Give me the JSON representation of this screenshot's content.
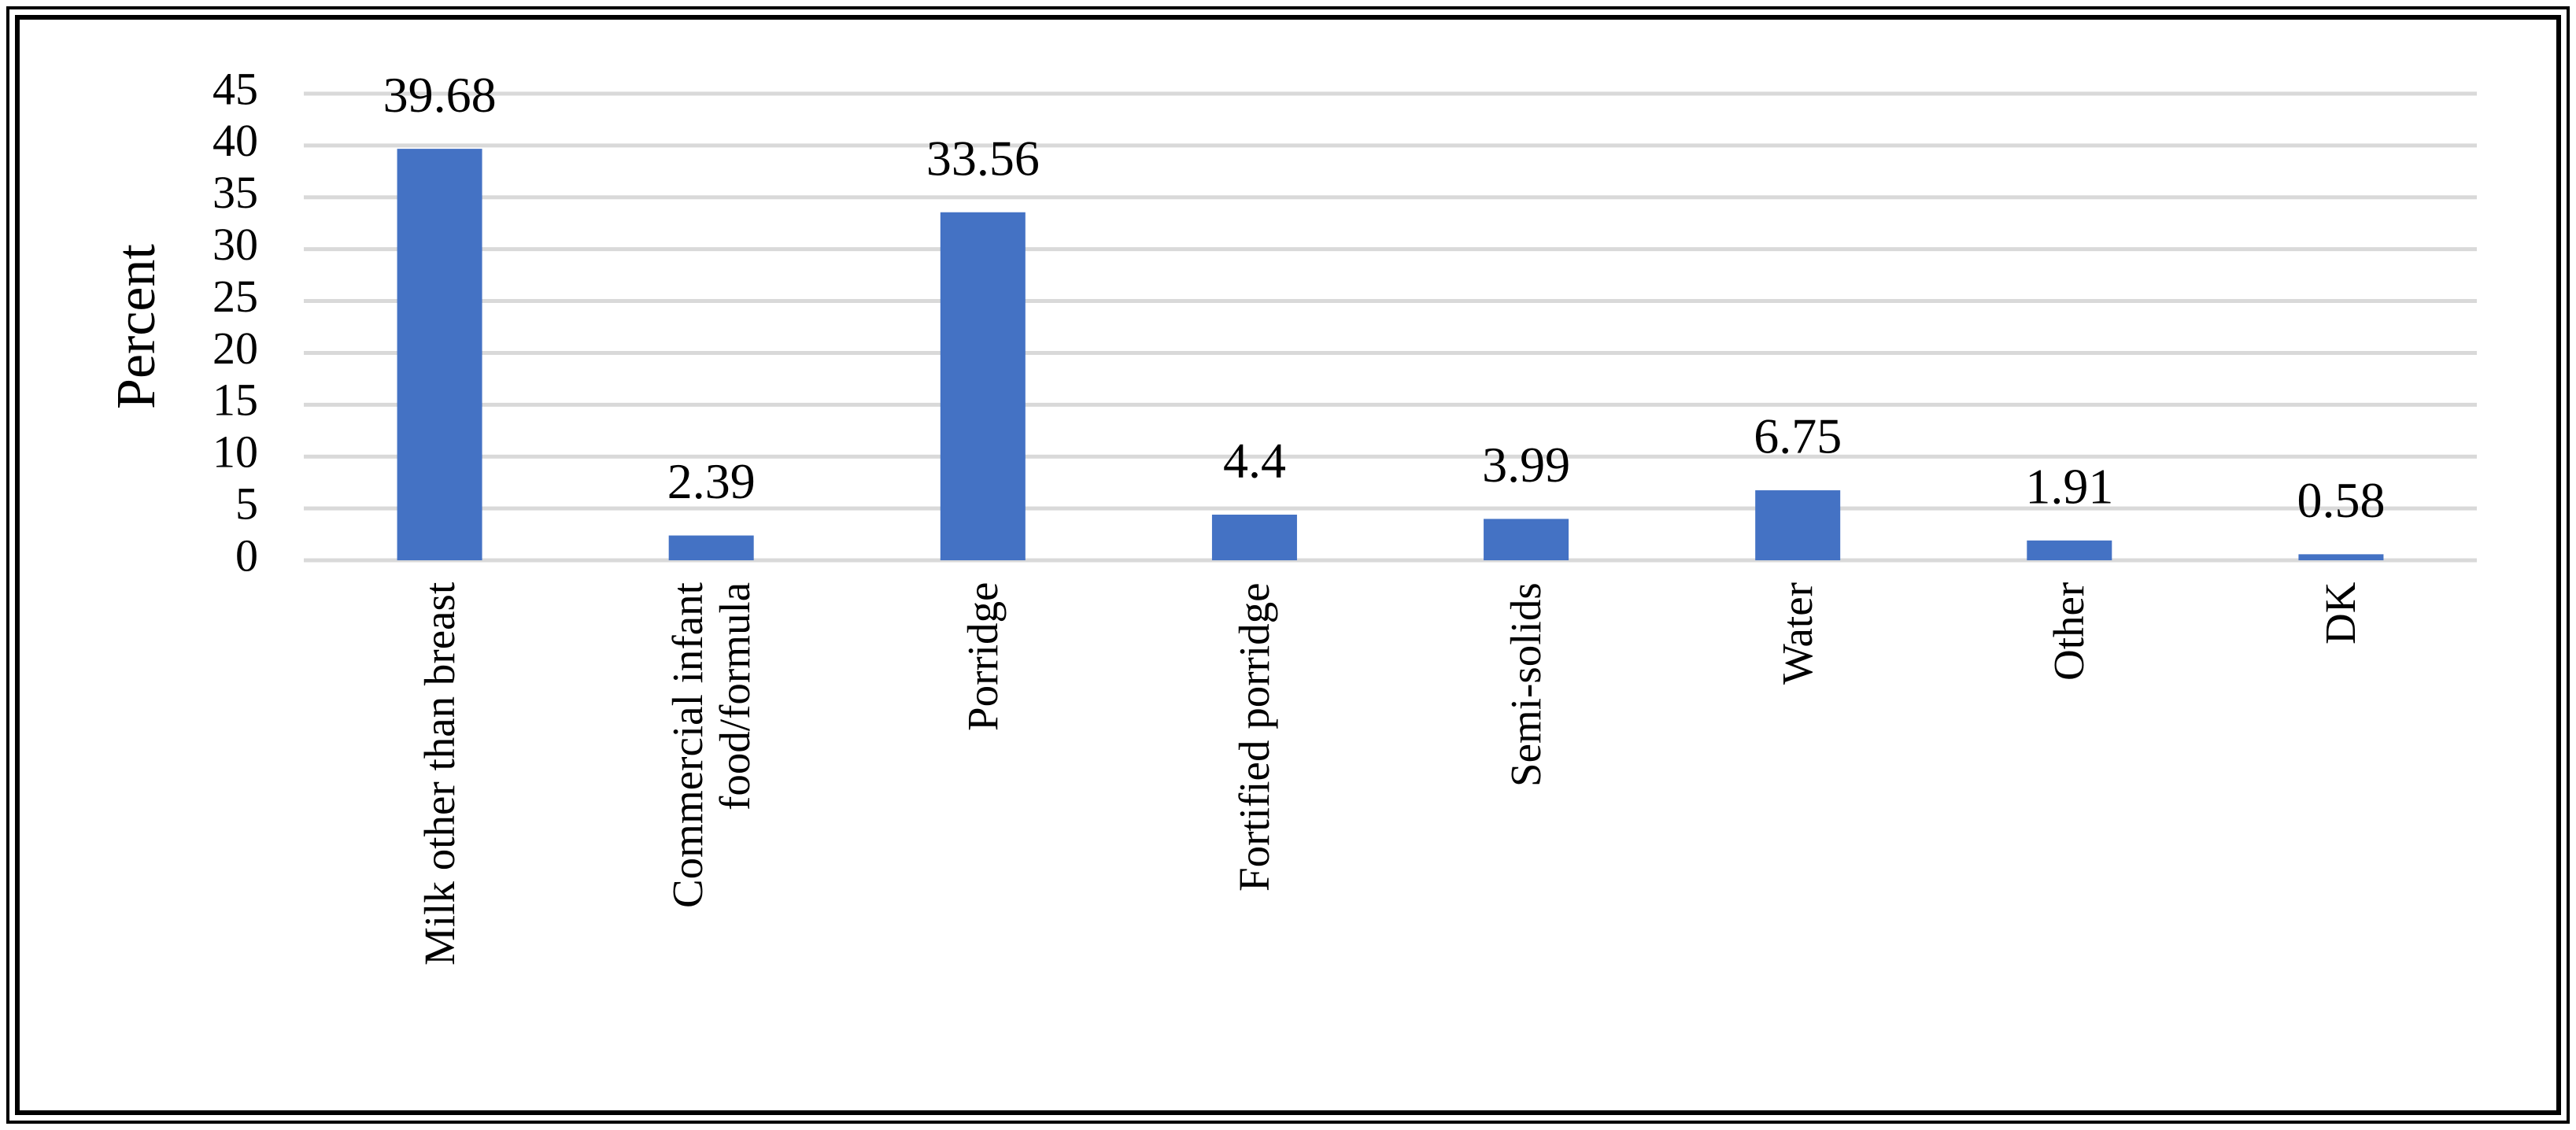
{
  "chart_data": {
    "type": "bar",
    "y_label": "Percent",
    "categories": [
      "Milk other than breast",
      "Commercial infant\nfood/formula",
      "Porridge",
      "Fortified porridge",
      "Semi-solids",
      "Water",
      "Other",
      "DK"
    ],
    "values": [
      39.68,
      2.39,
      33.56,
      4.4,
      3.99,
      6.75,
      1.91,
      0.58
    ],
    "color": "#4472c4",
    "ylim": [
      0,
      45
    ],
    "yticks": [
      0,
      5,
      10,
      15,
      20,
      25,
      30,
      35,
      40,
      45
    ],
    "grid": true
  }
}
